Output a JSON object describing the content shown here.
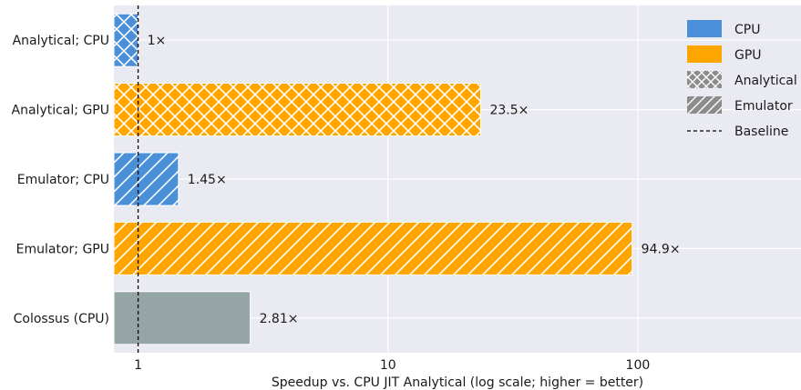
{
  "chart_data": {
    "type": "bar",
    "orientation": "horizontal",
    "categories": [
      "Analytical; CPU",
      "Analytical; GPU",
      "Emulator; CPU",
      "Emulator; GPU",
      "Colossus (CPU)"
    ],
    "values": [
      1.0,
      23.5,
      1.45,
      94.9,
      2.81
    ],
    "value_labels": [
      "1×",
      "23.5×",
      "1.45×",
      "94.9×",
      "2.81×"
    ],
    "bar_colors": [
      "#4a90d9",
      "#ffa500",
      "#4a90d9",
      "#ffa500",
      "#95a5a6"
    ],
    "bar_hatches": [
      "cross",
      "cross",
      "diagonal",
      "diagonal",
      "none"
    ],
    "xlabel": "Speedup vs. CPU JIT Analytical (log scale; higher = better)",
    "ylabel": "",
    "x_scale": "log",
    "xlim": [
      0.8,
      450
    ],
    "x_ticks": [
      1,
      10,
      100
    ],
    "x_tick_labels": [
      "1",
      "10",
      "100"
    ],
    "baseline": 1,
    "grid": true,
    "legend_position": "top-right",
    "legend": [
      {
        "label": "CPU",
        "kind": "patch",
        "color": "#4a90d9",
        "hatch": "none"
      },
      {
        "label": "GPU",
        "kind": "patch",
        "color": "#ffa500",
        "hatch": "none"
      },
      {
        "label": "Analytical",
        "kind": "patch",
        "color": "#8c8c8c",
        "hatch": "cross"
      },
      {
        "label": "Emulator",
        "kind": "patch",
        "color": "#8c8c8c",
        "hatch": "diagonal"
      },
      {
        "label": "Baseline",
        "kind": "dashed-line",
        "color": "#000000"
      }
    ]
  }
}
